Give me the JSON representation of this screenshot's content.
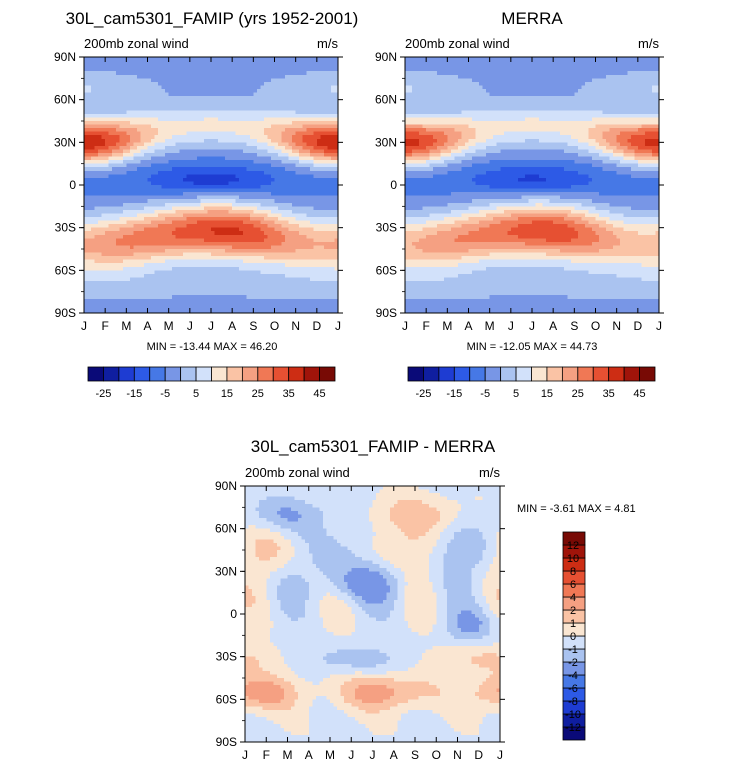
{
  "contour_levels": {
    "mean": [
      -25,
      -20,
      -15,
      -10,
      -5,
      0,
      5,
      10,
      15,
      20,
      25,
      30,
      35,
      40,
      45
    ],
    "mean_labeled": [
      "-25",
      "-15",
      "-5",
      "5",
      "15",
      "25",
      "35",
      "45"
    ],
    "diff": [
      -12,
      -10,
      -8,
      -6,
      -4,
      -2,
      -1,
      0,
      1,
      2,
      4,
      6,
      8,
      10,
      12
    ],
    "diff_labeled": [
      "-12",
      "-10",
      "-8",
      "-6",
      "-4",
      "-2",
      "-1",
      "0",
      "1",
      "2",
      "4",
      "6",
      "8",
      "10",
      "12"
    ]
  },
  "colors": {
    "mean": [
      "#0a0a78",
      "#0f1ea0",
      "#1e3cd2",
      "#2d5ae6",
      "#4678e6",
      "#7896e6",
      "#aac3f0",
      "#d2e1fa",
      "#fae6d2",
      "#fac3a5",
      "#f5a082",
      "#f07855",
      "#e65032",
      "#cd2d14",
      "#a0140a",
      "#780a05"
    ],
    "diff": [
      "#0a0a78",
      "#0f1ea0",
      "#1e3cd2",
      "#2d5ae6",
      "#4678e6",
      "#7896e6",
      "#aac3f0",
      "#d2e1fa",
      "#fae6d2",
      "#fac3a5",
      "#f5a082",
      "#f07855",
      "#e65032",
      "#cd2d14",
      "#a0140a",
      "#780a05"
    ]
  },
  "chart_data": [
    {
      "type": "heatmap",
      "title": "30L_cam5301_FAMIP (yrs 1952-2001)",
      "subtitle_left": "200mb zonal wind",
      "subtitle_right": "m/s",
      "stats": "MIN = -13.44 MAX =  46.20",
      "x": [
        "J",
        "F",
        "M",
        "A",
        "M",
        "J",
        "J",
        "A",
        "S",
        "O",
        "N",
        "D",
        "J"
      ],
      "y_ticks": [
        "90N",
        "60N",
        "30N",
        "0",
        "30S",
        "60S",
        "90S"
      ],
      "y_range": [
        -90,
        90
      ],
      "field": {
        "nh_jet": 44,
        "sh_jet": 40,
        "tropical_min": -13.44,
        "max": 46.2
      }
    },
    {
      "type": "heatmap",
      "title": "MERRA",
      "subtitle_left": "200mb zonal wind",
      "subtitle_right": "m/s",
      "stats": "MIN = -12.05 MAX =  44.73",
      "x": [
        "J",
        "F",
        "M",
        "A",
        "M",
        "J",
        "J",
        "A",
        "S",
        "O",
        "N",
        "D",
        "J"
      ],
      "y_ticks": [
        "90N",
        "60N",
        "30N",
        "0",
        "30S",
        "60S",
        "90S"
      ],
      "y_range": [
        -90,
        90
      ],
      "field": {
        "nh_jet": 42,
        "sh_jet": 38,
        "tropical_min": -12.05,
        "max": 44.73
      }
    },
    {
      "type": "heatmap",
      "title": "30L_cam5301_FAMIP - MERRA",
      "subtitle_left": "200mb zonal wind",
      "subtitle_right": "m/s",
      "stats": "MIN =  -3.61 MAX =   4.81",
      "x": [
        "J",
        "F",
        "M",
        "A",
        "M",
        "J",
        "J",
        "A",
        "S",
        "O",
        "N",
        "D",
        "J"
      ],
      "y_ticks": [
        "90N",
        "60N",
        "30N",
        "0",
        "30S",
        "60S",
        "90S"
      ],
      "y_range": [
        -90,
        90
      ],
      "field": {
        "min": -3.61,
        "max": 4.81
      }
    }
  ]
}
